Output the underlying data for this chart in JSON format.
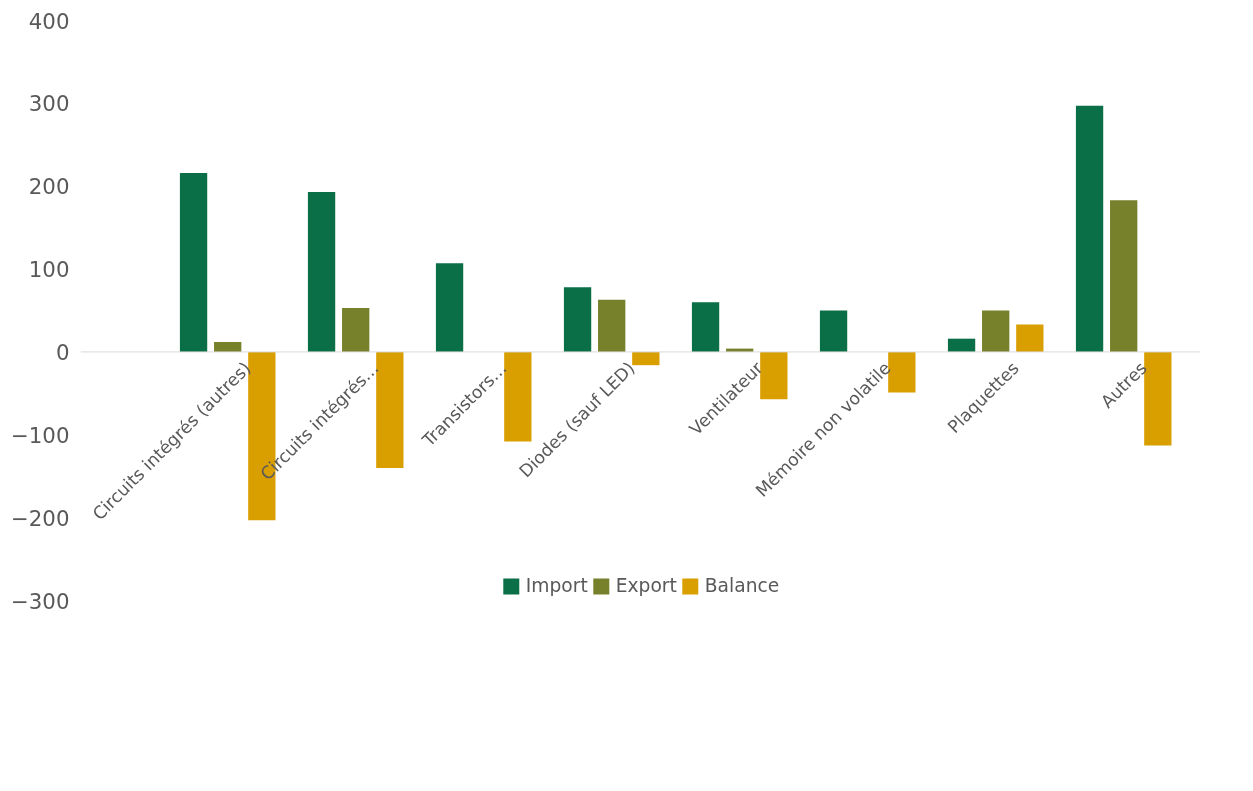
{
  "chart_data": {
    "type": "bar",
    "categories": [
      "Circuits intégrés (autres)",
      "Circuits intégrés…",
      "Transistors…",
      "Diodes (sauf LED)",
      "Ventilateur",
      "Mémoire non volatile",
      "Plaquettes",
      "Autres"
    ],
    "series": [
      {
        "name": "Import",
        "color": "#0a6e46",
        "values": [
          216,
          193,
          107,
          78,
          60,
          50,
          16,
          297
        ]
      },
      {
        "name": "Export",
        "color": "#77802a",
        "values": [
          12,
          53,
          0,
          63,
          4,
          0,
          50,
          183
        ]
      },
      {
        "name": "Balance",
        "color": "#d99e00",
        "values": [
          -203,
          -140,
          -108,
          -16,
          -57,
          -49,
          33,
          -113
        ]
      }
    ],
    "ylim": [
      -300,
      400
    ],
    "yticks": [
      -300,
      -200,
      -100,
      0,
      100,
      200,
      300,
      400
    ],
    "grid": false,
    "legend": "bottom"
  }
}
